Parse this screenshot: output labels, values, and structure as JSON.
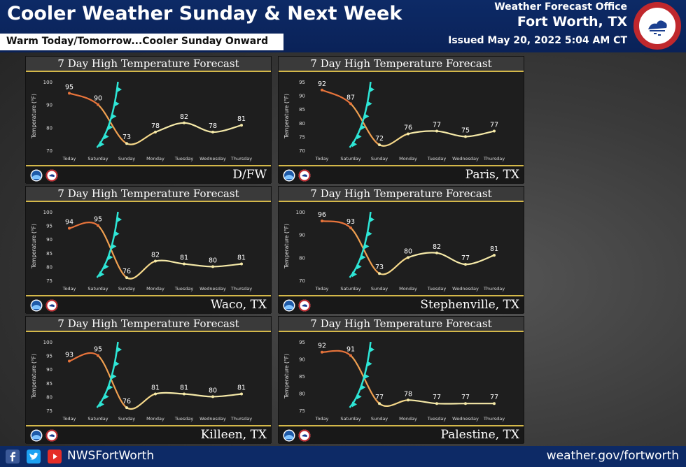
{
  "header": {
    "title": "Cooler Weather Sunday & Next Week",
    "subtitle": "Warm Today/Tomorrow...Cooler Sunday Onward",
    "office": "Weather Forecast Office",
    "location": "Fort Worth, TX",
    "issued": "Issued May 20, 2022 5:04 AM CT",
    "logo_text": "NATIONAL WEATHER SERVICE"
  },
  "footer": {
    "handle": "NWSFortWorth",
    "website": "weather.gov/fortworth",
    "icons": [
      "facebook-icon",
      "twitter-icon",
      "youtube-icon"
    ]
  },
  "colors": {
    "header_bg": "#0d2a66",
    "warm_curve": "#e8743b",
    "cool_curve": "#f5e9a8",
    "front": "#2ee6d6",
    "accent_line": "#d4b84a"
  },
  "chart_data": [
    {
      "type": "line",
      "title": "7 Day High Temperature Forecast",
      "location": "D/FW",
      "ylabel": "Temperature (°F)",
      "categories": [
        "Today",
        "Saturday",
        "Sunday",
        "Monday",
        "Tuesday",
        "Wednesday",
        "Thursday"
      ],
      "values": [
        95,
        90,
        73,
        78,
        82,
        78,
        81
      ],
      "yticks": [
        70,
        80,
        90,
        100
      ],
      "ylim": [
        70,
        100
      ],
      "cold_front_between": [
        "Saturday",
        "Sunday"
      ]
    },
    {
      "type": "line",
      "title": "7 Day High Temperature Forecast",
      "location": "Paris, TX",
      "ylabel": "Temperature (°F)",
      "categories": [
        "Today",
        "Saturday",
        "Sunday",
        "Monday",
        "Tuesday",
        "Wednesday",
        "Thursday"
      ],
      "values": [
        92,
        87,
        72,
        76,
        77,
        75,
        77
      ],
      "yticks": [
        70,
        75,
        80,
        85,
        90,
        95
      ],
      "ylim": [
        70,
        95
      ],
      "cold_front_between": [
        "Saturday",
        "Sunday"
      ]
    },
    {
      "type": "line",
      "title": "7 Day High Temperature Forecast",
      "location": "Waco, TX",
      "ylabel": "Temperature (°F)",
      "categories": [
        "Today",
        "Saturday",
        "Sunday",
        "Monday",
        "Tuesday",
        "Wednesday",
        "Thursday"
      ],
      "values": [
        94,
        95,
        76,
        82,
        81,
        80,
        81
      ],
      "yticks": [
        75,
        80,
        85,
        90,
        95,
        100
      ],
      "ylim": [
        75,
        100
      ],
      "cold_front_between": [
        "Saturday",
        "Sunday"
      ]
    },
    {
      "type": "line",
      "title": "7 Day High Temperature Forecast",
      "location": "Stephenville, TX",
      "ylabel": "Temperature (°F)",
      "categories": [
        "Today",
        "Saturday",
        "Sunday",
        "Monday",
        "Tuesday",
        "Wednesday",
        "Thursday"
      ],
      "values": [
        96,
        93,
        73,
        80,
        82,
        77,
        81
      ],
      "yticks": [
        70,
        80,
        90,
        100
      ],
      "ylim": [
        70,
        100
      ],
      "cold_front_between": [
        "Saturday",
        "Sunday"
      ]
    },
    {
      "type": "line",
      "title": "7 Day High Temperature Forecast",
      "location": "Killeen, TX",
      "ylabel": "Temperature (°F)",
      "categories": [
        "Today",
        "Saturday",
        "Sunday",
        "Monday",
        "Tuesday",
        "Wednesday",
        "Thursday"
      ],
      "values": [
        93,
        95,
        76,
        81,
        81,
        80,
        81
      ],
      "yticks": [
        75,
        80,
        85,
        90,
        95,
        100
      ],
      "ylim": [
        75,
        100
      ],
      "cold_front_between": [
        "Saturday",
        "Sunday"
      ]
    },
    {
      "type": "line",
      "title": "7 Day High Temperature Forecast",
      "location": "Palestine, TX",
      "ylabel": "Temperature (°F)",
      "categories": [
        "Today",
        "Saturday",
        "Sunday",
        "Monday",
        "Tuesday",
        "Wednesday",
        "Thursday"
      ],
      "values": [
        92,
        91,
        77,
        78,
        77,
        77,
        77
      ],
      "yticks": [
        75,
        80,
        85,
        90,
        95
      ],
      "ylim": [
        75,
        95
      ],
      "cold_front_between": [
        "Saturday",
        "Sunday"
      ]
    }
  ]
}
